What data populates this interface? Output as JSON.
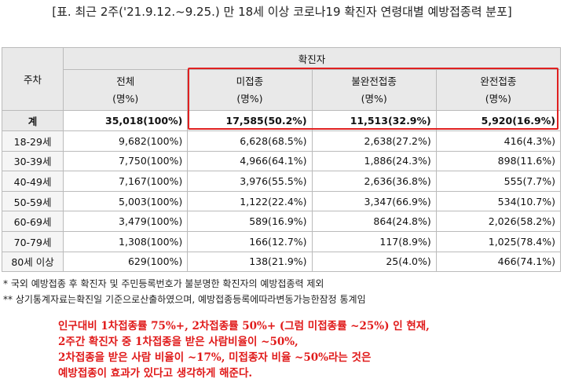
{
  "title": "[표. 최근 2주('21.9.12.~9.25.) 만 18세 이상 코로나19 확진자 연령대별 예방접종력 분포]",
  "table": {
    "row_header": "주차",
    "group_header": "확진자",
    "columns": [
      {
        "name": "전체",
        "unit": "(명%)"
      },
      {
        "name": "미접종",
        "unit": "(명%)"
      },
      {
        "name": "불완전접종",
        "unit": "(명%)"
      },
      {
        "name": "완전접종",
        "unit": "(명%)"
      }
    ],
    "rows": [
      [
        "계",
        "35,018(100%)",
        "17,585(50.2%)",
        "11,513(32.9%)",
        "5,920(16.9%)"
      ],
      [
        "18-29세",
        "9,682(100%)",
        "6,628(68.5%)",
        "2,638(27.2%)",
        "416(4.3%)"
      ],
      [
        "30-39세",
        "7,750(100%)",
        "4,966(64.1%)",
        "1,886(24.3%)",
        "898(11.6%)"
      ],
      [
        "40-49세",
        "7,167(100%)",
        "3,976(55.5%)",
        "2,636(36.8%)",
        "555(7.7%)"
      ],
      [
        "50-59세",
        "5,003(100%)",
        "1,122(22.4%)",
        "3,347(66.9%)",
        "534(10.7%)"
      ],
      [
        "60-69세",
        "3,479(100%)",
        "589(16.9%)",
        "864(24.8%)",
        "2,026(58.2%)"
      ],
      [
        "70-79세",
        "1,308(100%)",
        "166(12.7%)",
        "117(8.9%)",
        "1,025(78.4%)"
      ],
      [
        "80세 이상",
        "629(100%)",
        "138(21.9%)",
        "25(4.0%)",
        "466(74.1%)"
      ]
    ]
  },
  "notes": [
    "* 국외 예방접종 후 확진자 및 주민등록번호가 불분명한 확진자의 예방접종력 제외",
    "** 상기통계자료는확진일 기준으로산출하였으며, 예방접종등록에따라변동가능한잠정 통계임"
  ],
  "annotation": [
    "인구대비 1차접종률 75%+, 2차접종률 50%+ (그럼 미접종률 ~25%) 인 현재,",
    "2주간 확진자 중 1차접종을 받은 사람비율이 ~50%,",
    "2차접종을 받은 사람 비율이 ~17%, 미접종자 비율 ~50%라는 것은",
    "예방접종이 효과가 있다고 생각하게 해준다."
  ]
}
